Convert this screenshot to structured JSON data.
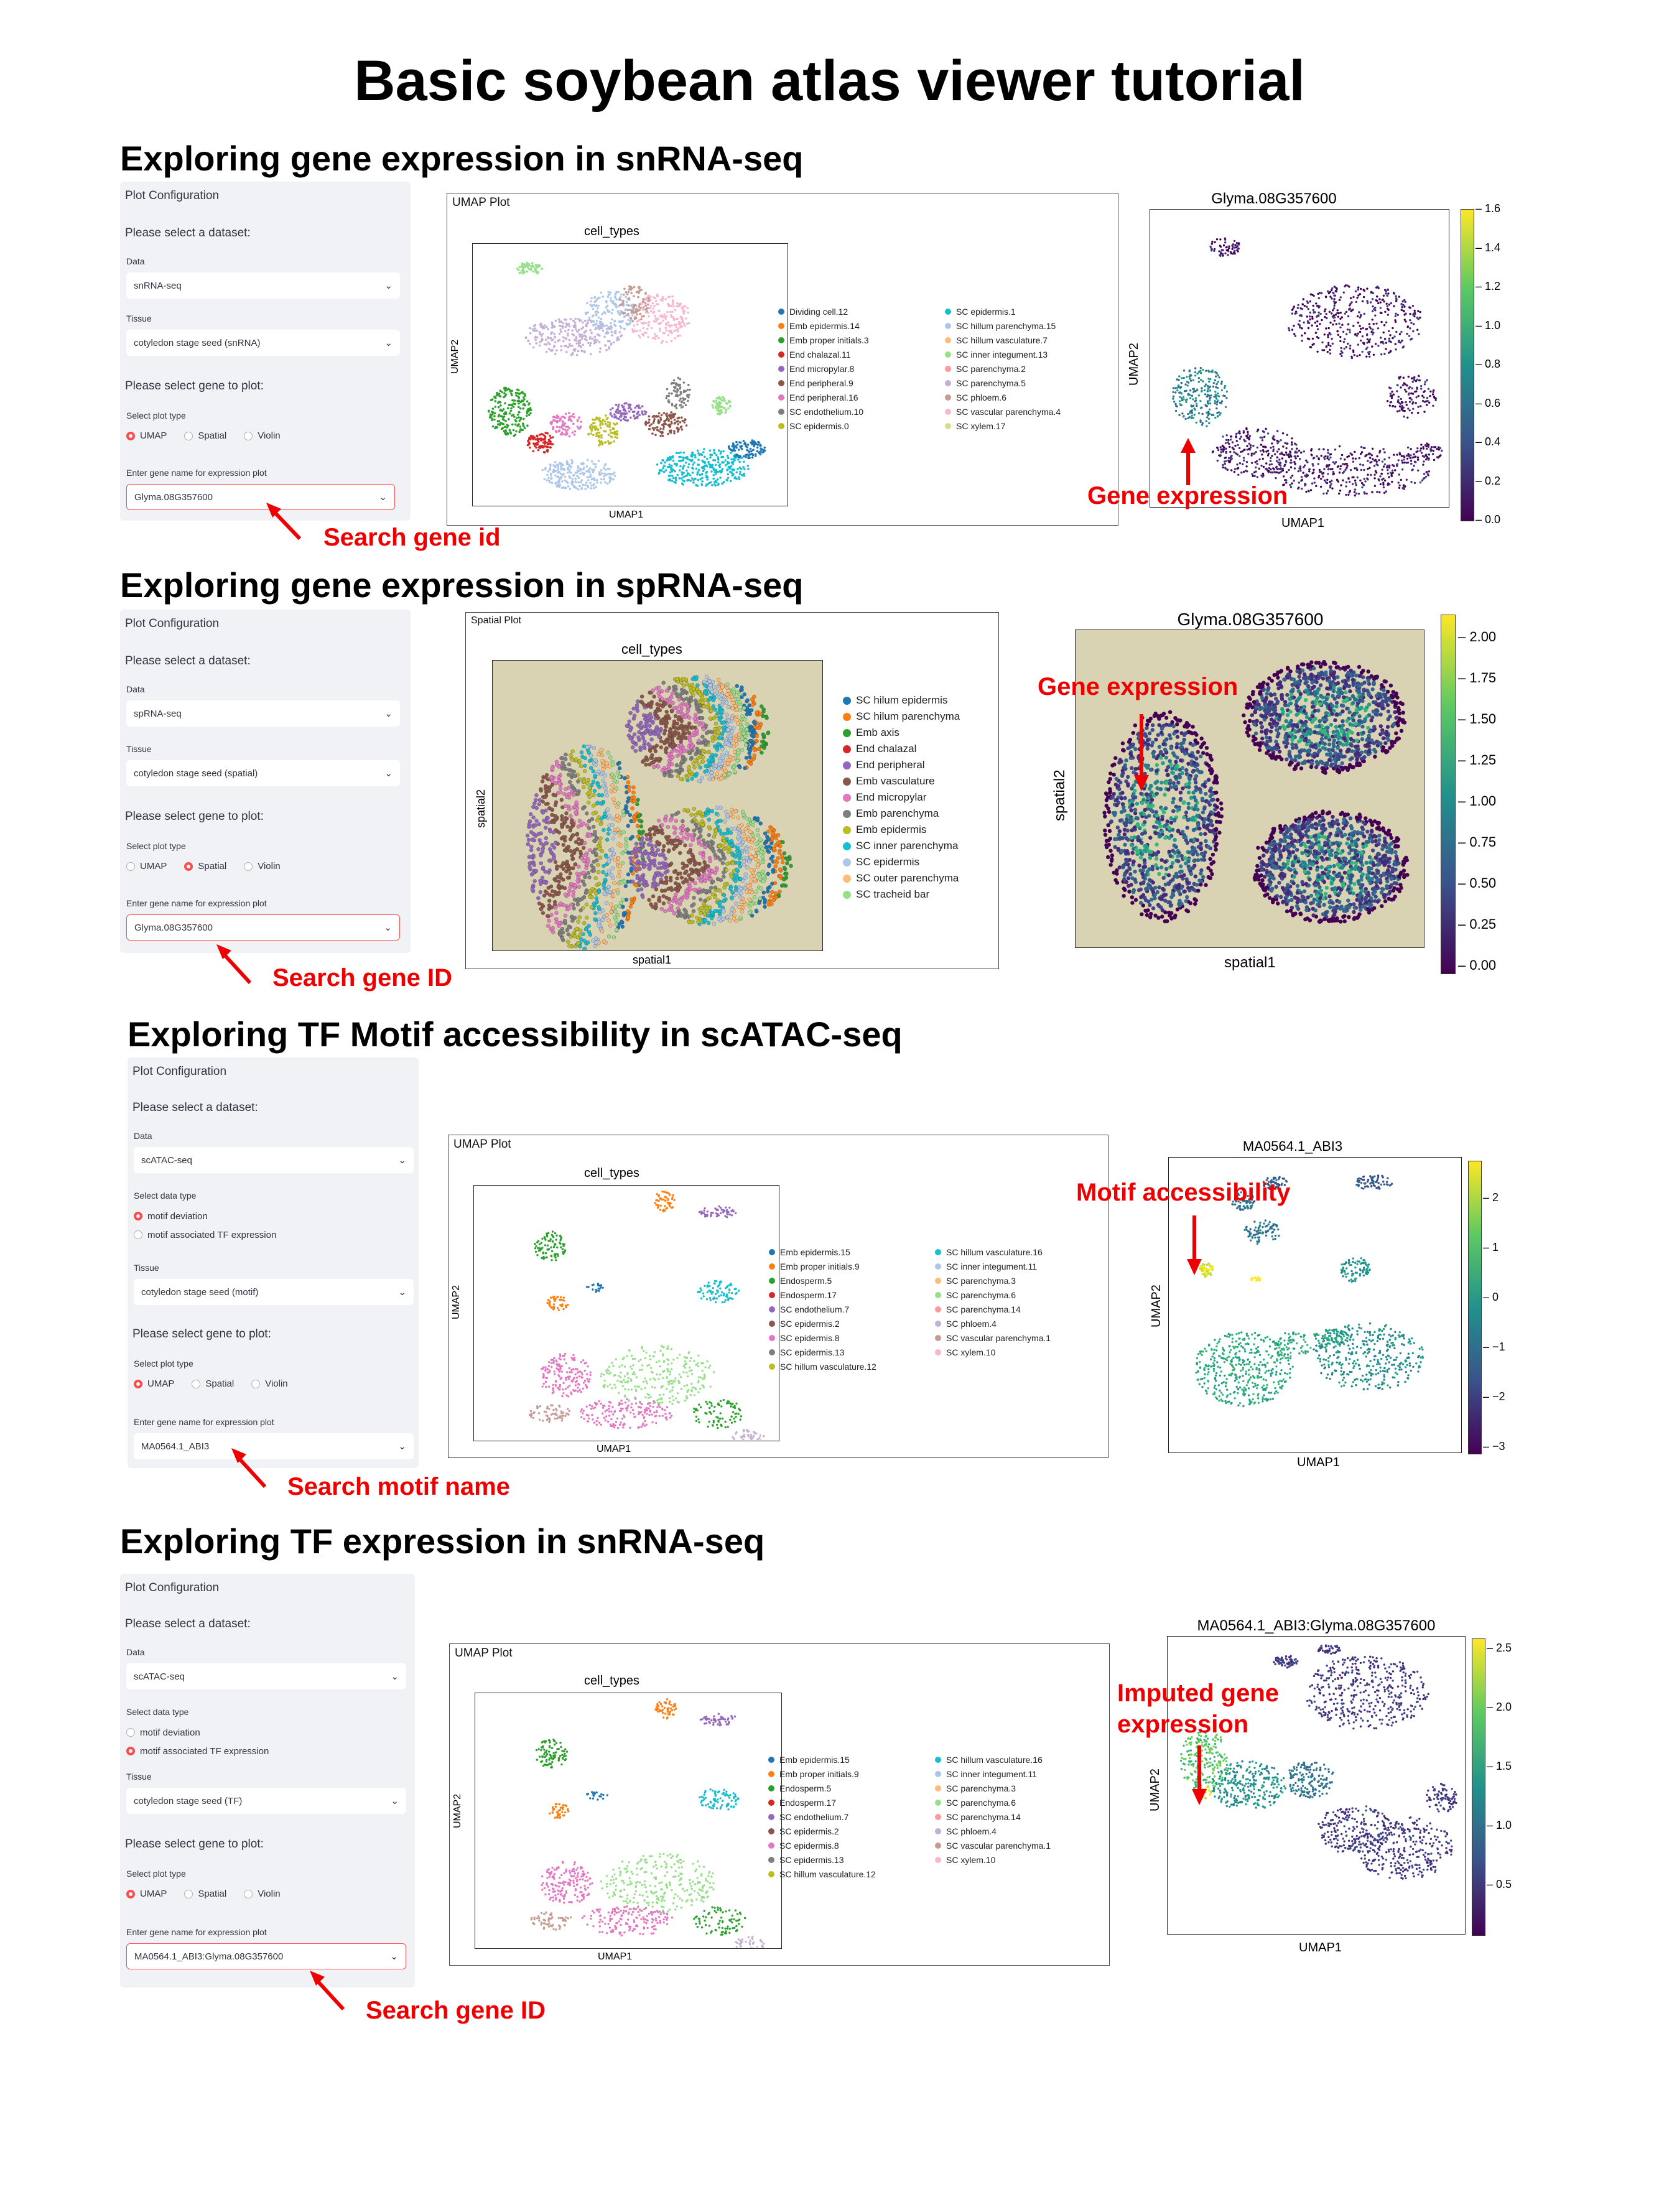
{
  "title": "Basic soybean atlas viewer tutorial",
  "s1": {
    "title": "Exploring gene expression in snRNA-seq",
    "panel": {
      "head": "Plot Configuration",
      "select_dataset": "Please select a dataset:",
      "data_label": "Data",
      "data_value": "snRNA-seq",
      "tissue_label": "Tissue",
      "tissue_value": "cotyledon stage seed (snRNA)",
      "select_gene": "Please select gene to plot:",
      "plot_type_label": "Select plot type",
      "opt_umap": "UMAP",
      "opt_spatial": "Spatial",
      "opt_violin": "Violin",
      "selected": "UMAP",
      "gene_label": "Enter gene name for expression plot",
      "gene_value": "Glyma.08G357600"
    },
    "search_annotation": "Search gene id",
    "plot_frame_title": "UMAP Plot",
    "plot_title": "cell_types",
    "xlabel": "UMAP1",
    "ylabel": "UMAP2",
    "legend_col1": [
      "Dividing cell.12",
      "Emb epidermis.14",
      "Emb proper initials.3",
      "End chalazal.11",
      "End micropylar.8",
      "End peripheral.9",
      "End peripheral.16",
      "SC endothelium.10",
      "SC epidermis.0"
    ],
    "legend_col2": [
      "SC epidermis.1",
      "SC hillum parenchyma.15",
      "SC hillum vasculature.7",
      "SC inner integument.13",
      "SC parenchyma.2",
      "SC parenchyma.5",
      "SC phloem.6",
      "SC vascular parenchyma.4",
      "SC xylem.17"
    ],
    "expr_title": "Glyma.08G357600",
    "expr_xlabel": "UMAP1",
    "expr_ylabel": "UMAP2",
    "expr_annotation": "Gene expression",
    "colorbar_ticks": [
      "1.6",
      "1.4",
      "1.2",
      "1.0",
      "0.8",
      "0.6",
      "0.4",
      "0.2",
      "0.0"
    ]
  },
  "s2": {
    "title": "Exploring gene expression in spRNA-seq",
    "panel": {
      "head": "Plot Configuration",
      "select_dataset": "Please select a dataset:",
      "data_label": "Data",
      "data_value": "spRNA-seq",
      "tissue_label": "Tissue",
      "tissue_value": "cotyledon stage seed (spatial)",
      "select_gene": "Please select gene to plot:",
      "plot_type_label": "Select plot type",
      "opt_umap": "UMAP",
      "opt_spatial": "Spatial",
      "opt_violin": "Violin",
      "selected": "Spatial",
      "gene_label": "Enter gene name for expression plot",
      "gene_value": "Glyma.08G357600"
    },
    "search_annotation": "Search gene ID",
    "plot_frame_title": "Spatial Plot",
    "plot_title": "cell_types",
    "xlabel": "spatial1",
    "ylabel": "spatial2",
    "legend": [
      "SC hilum epidermis",
      "SC hilum parenchyma",
      "Emb axis",
      "End chalazal",
      "End peripheral",
      "Emb vasculature",
      "End micropylar",
      "Emb parenchyma",
      "Emb epidermis",
      "SC inner parenchyma",
      "SC epidermis",
      "SC outer parenchyma",
      "SC tracheid bar"
    ],
    "expr_title": "Glyma.08G357600",
    "expr_xlabel": "spatial1",
    "expr_ylabel": "spatial2",
    "expr_annotation": "Gene expression",
    "colorbar_ticks": [
      "2.00",
      "1.75",
      "1.50",
      "1.25",
      "1.00",
      "0.75",
      "0.50",
      "0.25",
      "0.00"
    ]
  },
  "s3": {
    "title": "Exploring TF Motif accessibility in scATAC-seq",
    "panel": {
      "head": "Plot Configuration",
      "select_dataset": "Please select a dataset:",
      "data_label": "Data",
      "data_value": "scATAC-seq",
      "dtype_label": "Select data type",
      "dtype_opt1": "motif deviation",
      "dtype_opt2": "motif associated TF expression",
      "dtype_selected": "motif deviation",
      "tissue_label": "Tissue",
      "tissue_value": "cotyledon stage seed (motif)",
      "select_gene": "Please select gene to plot:",
      "plot_type_label": "Select plot type",
      "opt_umap": "UMAP",
      "opt_spatial": "Spatial",
      "opt_violin": "Violin",
      "selected": "UMAP",
      "gene_label": "Enter gene name for expression plot",
      "gene_value": "MA0564.1_ABI3"
    },
    "search_annotation": "Search motif name",
    "plot_frame_title": "UMAP Plot",
    "plot_title": "cell_types",
    "xlabel": "UMAP1",
    "ylabel": "UMAP2",
    "legend_col1": [
      "Emb epidermis.15",
      "Emb proper initials.9",
      "Endosperm.5",
      "Endosperm.17",
      "SC endothelium.7",
      "SC epidermis.2",
      "SC epidermis.8",
      "SC epidermis.13",
      "SC hillum vasculature.12"
    ],
    "legend_col2": [
      "SC hillum vasculature.16",
      "SC inner integument.11",
      "SC parenchyma.3",
      "SC parenchyma.6",
      "SC parenchyma.14",
      "SC phloem.4",
      "SC vascular parenchyma.1",
      "SC xylem.10"
    ],
    "expr_title": "MA0564.1_ABI3",
    "expr_xlabel": "UMAP1",
    "expr_ylabel": "UMAP2",
    "expr_annotation": "Motif accessibility",
    "colorbar_ticks": [
      "2",
      "1",
      "0",
      "−1",
      "−2",
      "−3"
    ]
  },
  "s4": {
    "title": "Exploring TF expression in snRNA-seq",
    "panel": {
      "head": "Plot Configuration",
      "select_dataset": "Please select a dataset:",
      "data_label": "Data",
      "data_value": "scATAC-seq",
      "dtype_label": "Select data type",
      "dtype_opt1": "motif deviation",
      "dtype_opt2": "motif associated TF expression",
      "dtype_selected": "motif associated TF expression",
      "tissue_label": "Tissue",
      "tissue_value": "cotyledon stage seed (TF)",
      "select_gene": "Please select gene to plot:",
      "plot_type_label": "Select plot type",
      "opt_umap": "UMAP",
      "opt_spatial": "Spatial",
      "opt_violin": "Violin",
      "selected": "UMAP",
      "gene_label": "Enter gene name for expression plot",
      "gene_value": "MA0564.1_ABI3:Glyma.08G357600"
    },
    "search_annotation": "Search gene ID",
    "plot_frame_title": "UMAP Plot",
    "plot_title": "cell_types",
    "xlabel": "UMAP1",
    "ylabel": "UMAP2",
    "legend_col1": [
      "Emb epidermis.15",
      "Emb proper initials.9",
      "Endosperm.5",
      "Endosperm.17",
      "SC endothelium.7",
      "SC epidermis.2",
      "SC epidermis.8",
      "SC epidermis.13",
      "SC hillum vasculature.12"
    ],
    "legend_col2": [
      "SC hillum vasculature.16",
      "SC inner integument.11",
      "SC parenchyma.3",
      "SC parenchyma.6",
      "SC parenchyma.14",
      "SC phloem.4",
      "SC vascular parenchyma.1",
      "SC xylem.10"
    ],
    "expr_title": "MA0564.1_ABI3:Glyma.08G357600",
    "expr_xlabel": "UMAP1",
    "expr_ylabel": "UMAP2",
    "expr_annotation_line1": "Imputed gene",
    "expr_annotation_line2": "expression",
    "colorbar_ticks": [
      "2.5",
      "2.0",
      "1.5",
      "1.0",
      "0.5"
    ]
  },
  "colors": {
    "accent": "#ff4b4b",
    "annotation": "#ee0000",
    "panel_bg": "#f0f2f6",
    "tab20": [
      "#1f77b4",
      "#ff7f0e",
      "#2ca02c",
      "#d62728",
      "#9467bd",
      "#8c564b",
      "#e377c2",
      "#7f7f7f",
      "#bcbd22",
      "#17becf",
      "#aec7e8",
      "#ffbb78",
      "#98df8a",
      "#ff9896",
      "#c5b0d5",
      "#c49c94",
      "#f7b6d2",
      "#dbdb8d"
    ],
    "viridis": [
      "#440154",
      "#482878",
      "#3e4989",
      "#31688e",
      "#26828e",
      "#1f9e89",
      "#35b779",
      "#6ece58",
      "#b5de2b",
      "#fde725"
    ]
  }
}
